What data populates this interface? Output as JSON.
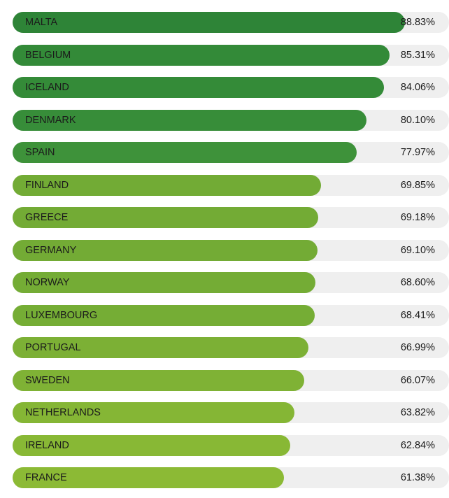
{
  "chart_data": {
    "type": "bar",
    "orientation": "horizontal",
    "categories": [
      "MALTA",
      "BELGIUM",
      "ICELAND",
      "DENMARK",
      "SPAIN",
      "FINLAND",
      "GREECE",
      "GERMANY",
      "NORWAY",
      "LUXEMBOURG",
      "PORTUGAL",
      "SWEDEN",
      "NETHERLANDS",
      "IRELAND",
      "FRANCE"
    ],
    "values": [
      88.83,
      85.31,
      84.06,
      80.1,
      77.97,
      69.85,
      69.18,
      69.1,
      68.6,
      68.41,
      66.99,
      66.07,
      63.82,
      62.84,
      61.38
    ],
    "value_labels": [
      "88.83%",
      "85.31%",
      "84.06%",
      "80.10%",
      "77.97%",
      "69.85%",
      "69.18%",
      "69.10%",
      "68.60%",
      "68.41%",
      "66.99%",
      "66.07%",
      "63.82%",
      "62.84%",
      "61.38%"
    ],
    "title": "",
    "xlabel": "",
    "ylabel": "",
    "xlim": [
      0,
      98.8
    ],
    "grid": false,
    "legend": "none",
    "colors": {
      "track": "#efefef",
      "bars": [
        "#2e8437",
        "#338a38",
        "#348b38",
        "#378d39",
        "#3e923a",
        "#72ab35",
        "#73ab35",
        "#73ab35",
        "#74ac35",
        "#75ad35",
        "#7cb035",
        "#7fb235",
        "#85b635",
        "#88b835",
        "#8cba35"
      ]
    }
  }
}
